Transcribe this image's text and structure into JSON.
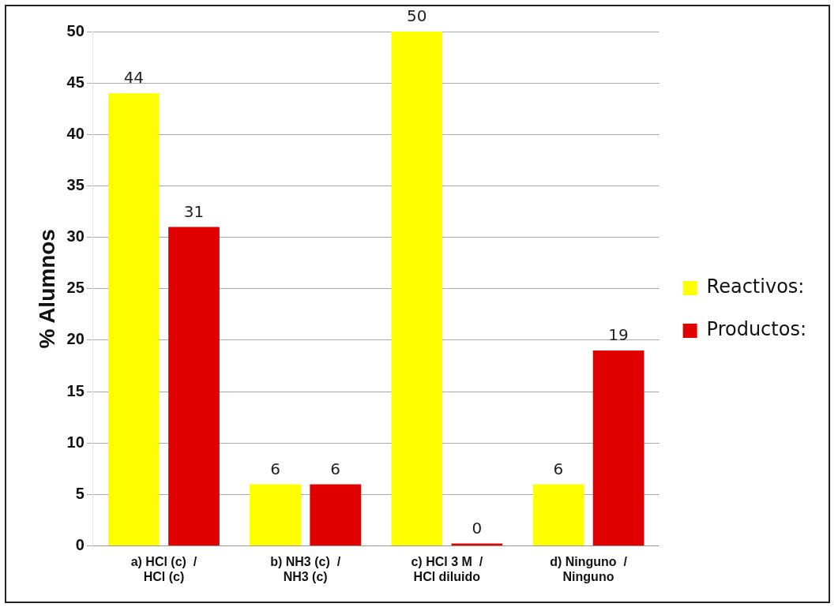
{
  "chart_data": {
    "type": "bar",
    "ylabel": "% Alumnos",
    "categories": [
      "a) HCl (c)  /\nHCl (c)",
      "b) NH3 (c)  /\nNH3 (c)",
      "c) HCl 3 M  /\nHCl diluido",
      "d) Ninguno  /\nNinguno"
    ],
    "series": [
      {
        "name": "Reactivos:",
        "color": "#ffff00",
        "values": [
          44,
          6,
          50,
          6
        ]
      },
      {
        "name": "Productos:",
        "color": "#e00000",
        "values": [
          31,
          6,
          0,
          19
        ]
      }
    ],
    "ylim": [
      0,
      50
    ],
    "yticks": [
      0,
      5,
      10,
      15,
      20,
      25,
      30,
      35,
      40,
      45,
      50
    ],
    "grid": "y",
    "legend": "right",
    "data_labels": true
  }
}
